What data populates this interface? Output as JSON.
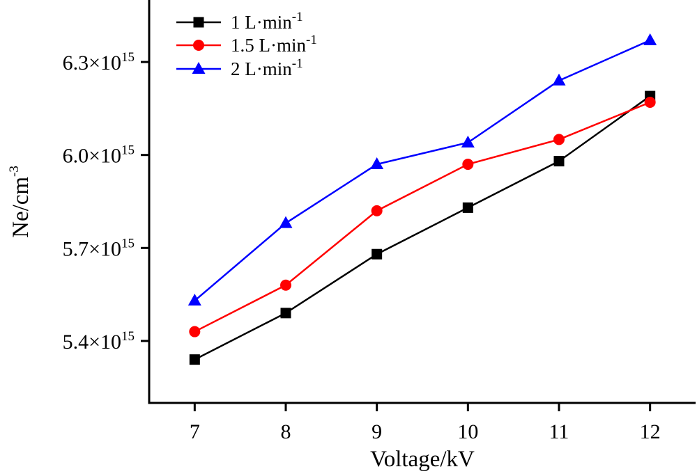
{
  "chart_data": {
    "type": "line",
    "title": "",
    "xlabel": "Voltage/kV",
    "ylabel": "Ne/cm",
    "ylabel_sup": "-3",
    "x": [
      7,
      8,
      9,
      10,
      11,
      12
    ],
    "xlim": [
      6.5,
      12.5
    ],
    "ylim": [
      5.2,
      6.5
    ],
    "y_scale_exponent": 15,
    "x_ticks": [
      7,
      8,
      9,
      10,
      11,
      12
    ],
    "x_tick_labels": [
      "7",
      "8",
      "9",
      "10",
      "11",
      "12"
    ],
    "y_ticks": [
      5.4,
      5.7,
      6.0,
      6.3
    ],
    "y_tick_labels": [
      {
        "mantissa": "5.4×10",
        "exp": "15"
      },
      {
        "mantissa": "5.7×10",
        "exp": "15"
      },
      {
        "mantissa": "6.0×10",
        "exp": "15"
      },
      {
        "mantissa": "6.3×10",
        "exp": "15"
      }
    ],
    "grid": false,
    "legend_position": "top-left",
    "series": [
      {
        "name": "1 L·min",
        "name_sup": "-1",
        "color": "#000000",
        "marker": "square",
        "values": [
          5.34,
          5.49,
          5.68,
          5.83,
          5.98,
          6.19
        ]
      },
      {
        "name": "1.5 L·min",
        "name_sup": "-1",
        "color": "#ff0000",
        "marker": "circle",
        "values": [
          5.43,
          5.58,
          5.82,
          5.97,
          6.05,
          6.17
        ]
      },
      {
        "name": "2 L·min",
        "name_sup": "-1",
        "color": "#0000ff",
        "marker": "triangle",
        "values": [
          5.53,
          5.78,
          5.97,
          6.04,
          6.24,
          6.37
        ]
      }
    ]
  }
}
